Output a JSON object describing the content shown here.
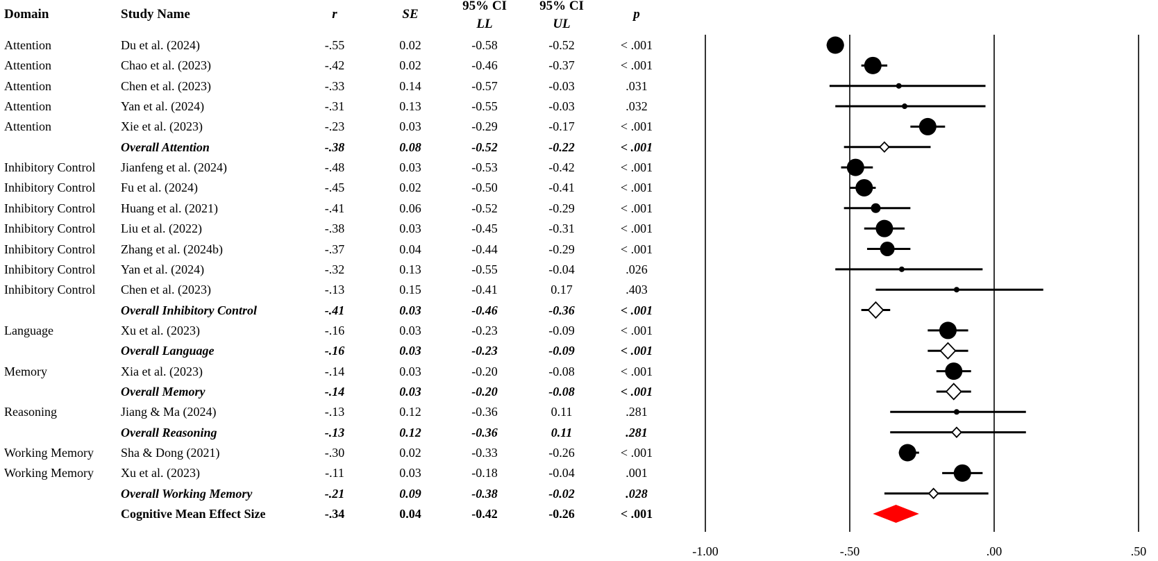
{
  "chart_data": {
    "type": "forest",
    "columns": {
      "domain": "Domain",
      "study": "Study Name",
      "r": "r",
      "se": "SE",
      "ll_top": "95% CI",
      "ll_bottom": "LL",
      "ul_top": "95% CI",
      "ul_bottom": "UL",
      "p": "p"
    },
    "rows": [
      {
        "kind": "study",
        "domain": "Attention",
        "study": "Du et al. (2024)",
        "r": "-.55",
        "se": "0.02",
        "ll": "-0.58",
        "ul": "-0.52",
        "p": "< .001",
        "est": -0.55,
        "lo": -0.58,
        "hi": -0.52,
        "weight": 0.02
      },
      {
        "kind": "study",
        "domain": "Attention",
        "study": "Chao et al. (2023)",
        "r": "-.42",
        "se": "0.02",
        "ll": "-0.46",
        "ul": "-0.37",
        "p": "< .001",
        "est": -0.42,
        "lo": -0.46,
        "hi": -0.37,
        "weight": 0.02
      },
      {
        "kind": "study",
        "domain": "Attention",
        "study": "Chen et al. (2023)",
        "r": "-.33",
        "se": "0.14",
        "ll": "-0.57",
        "ul": "-0.03",
        "p": ".031",
        "est": -0.33,
        "lo": -0.57,
        "hi": -0.03,
        "weight": 0.14
      },
      {
        "kind": "study",
        "domain": "Attention",
        "study": "Yan et al. (2024)",
        "r": "-.31",
        "se": "0.13",
        "ll": "-0.55",
        "ul": "-0.03",
        "p": ".032",
        "est": -0.31,
        "lo": -0.55,
        "hi": -0.03,
        "weight": 0.13
      },
      {
        "kind": "study",
        "domain": "Attention",
        "study": "Xie et al. (2023)",
        "r": "-.23",
        "se": "0.03",
        "ll": "-0.29",
        "ul": "-0.17",
        "p": "< .001",
        "est": -0.23,
        "lo": -0.29,
        "hi": -0.17,
        "weight": 0.03
      },
      {
        "kind": "overall",
        "domain": "",
        "study": "Overall Attention",
        "r": "-.38",
        "se": "0.08",
        "ll": "-0.52",
        "ul": "-0.22",
        "p": "< .001",
        "est": -0.38,
        "lo": -0.52,
        "hi": -0.22,
        "weight": 0.08
      },
      {
        "kind": "study",
        "domain": "Inhibitory Control",
        "study": "Jianfeng et al. (2024)",
        "r": "-.48",
        "se": "0.03",
        "ll": "-0.53",
        "ul": "-0.42",
        "p": "< .001",
        "est": -0.48,
        "lo": -0.53,
        "hi": -0.42,
        "weight": 0.03
      },
      {
        "kind": "study",
        "domain": "Inhibitory Control",
        "study": "Fu et al. (2024)",
        "r": "-.45",
        "se": "0.02",
        "ll": "-0.50",
        "ul": "-0.41",
        "p": "< .001",
        "est": -0.45,
        "lo": -0.5,
        "hi": -0.41,
        "weight": 0.02
      },
      {
        "kind": "study",
        "domain": "Inhibitory Control",
        "study": "Huang et al. (2021)",
        "r": "-.41",
        "se": "0.06",
        "ll": "-0.52",
        "ul": "-0.29",
        "p": "< .001",
        "est": -0.41,
        "lo": -0.52,
        "hi": -0.29,
        "weight": 0.06
      },
      {
        "kind": "study",
        "domain": "Inhibitory Control",
        "study": "Liu et al. (2022)",
        "r": "-.38",
        "se": "0.03",
        "ll": "-0.45",
        "ul": "-0.31",
        "p": "< .001",
        "est": -0.38,
        "lo": -0.45,
        "hi": -0.31,
        "weight": 0.03
      },
      {
        "kind": "study",
        "domain": "Inhibitory Control",
        "study": "Zhang et al. (2024b)",
        "r": "-.37",
        "se": "0.04",
        "ll": "-0.44",
        "ul": "-0.29",
        "p": "< .001",
        "est": -0.37,
        "lo": -0.44,
        "hi": -0.29,
        "weight": 0.04
      },
      {
        "kind": "study",
        "domain": "Inhibitory Control",
        "study": "Yan et al. (2024)",
        "r": "-.32",
        "se": "0.13",
        "ll": "-0.55",
        "ul": "-0.04",
        "p": ".026",
        "est": -0.32,
        "lo": -0.55,
        "hi": -0.04,
        "weight": 0.13
      },
      {
        "kind": "study",
        "domain": "Inhibitory Control",
        "study": "Chen et al. (2023)",
        "r": "-.13",
        "se": "0.15",
        "ll": "-0.41",
        "ul": "0.17",
        "p": ".403",
        "est": -0.13,
        "lo": -0.41,
        "hi": 0.17,
        "weight": 0.15
      },
      {
        "kind": "overall",
        "domain": "",
        "study": "Overall Inhibitory Control",
        "r": "-.41",
        "se": "0.03",
        "ll": "-0.46",
        "ul": "-0.36",
        "p": "< .001",
        "est": -0.41,
        "lo": -0.46,
        "hi": -0.36,
        "weight": 0.03
      },
      {
        "kind": "study",
        "domain": "Language",
        "study": "Xu et al. (2023)",
        "r": "-.16",
        "se": "0.03",
        "ll": "-0.23",
        "ul": "-0.09",
        "p": "< .001",
        "est": -0.16,
        "lo": -0.23,
        "hi": -0.09,
        "weight": 0.03
      },
      {
        "kind": "overall",
        "domain": "",
        "study": "Overall Language",
        "r": "-.16",
        "se": "0.03",
        "ll": "-0.23",
        "ul": "-0.09",
        "p": "< .001",
        "est": -0.16,
        "lo": -0.23,
        "hi": -0.09,
        "weight": 0.03
      },
      {
        "kind": "study",
        "domain": "Memory",
        "study": "Xia et al. (2023)",
        "r": "-.14",
        "se": "0.03",
        "ll": "-0.20",
        "ul": "-0.08",
        "p": "< .001",
        "est": -0.14,
        "lo": -0.2,
        "hi": -0.08,
        "weight": 0.03
      },
      {
        "kind": "overall",
        "domain": "",
        "study": "Overall Memory",
        "r": "-.14",
        "se": "0.03",
        "ll": "-0.20",
        "ul": "-0.08",
        "p": "< .001",
        "est": -0.14,
        "lo": -0.2,
        "hi": -0.08,
        "weight": 0.03
      },
      {
        "kind": "study",
        "domain": "Reasoning",
        "study": "Jiang & Ma (2024)",
        "r": "-.13",
        "se": "0.12",
        "ll": "-0.36",
        "ul": "0.11",
        "p": ".281",
        "est": -0.13,
        "lo": -0.36,
        "hi": 0.11,
        "weight": 0.12
      },
      {
        "kind": "overall",
        "domain": "",
        "study": "Overall Reasoning",
        "r": "-.13",
        "se": "0.12",
        "ll": "-0.36",
        "ul": "0.11",
        "p": ".281",
        "est": -0.13,
        "lo": -0.36,
        "hi": 0.11,
        "weight": 0.12
      },
      {
        "kind": "study",
        "domain": "Working Memory",
        "study": "Sha & Dong (2021)",
        "r": "-.30",
        "se": "0.02",
        "ll": "-0.33",
        "ul": "-0.26",
        "p": "< .001",
        "est": -0.3,
        "lo": -0.33,
        "hi": -0.26,
        "weight": 0.02
      },
      {
        "kind": "study",
        "domain": "Working Memory",
        "study": "Xu et al. (2023)",
        "r": "-.11",
        "se": "0.03",
        "ll": "-0.18",
        "ul": "-0.04",
        "p": ".001",
        "est": -0.11,
        "lo": -0.18,
        "hi": -0.04,
        "weight": 0.03
      },
      {
        "kind": "overall",
        "domain": "",
        "study": "Overall Working Memory",
        "r": "-.21",
        "se": "0.09",
        "ll": "-0.38",
        "ul": "-0.02",
        "p": ".028",
        "est": -0.21,
        "lo": -0.38,
        "hi": -0.02,
        "weight": 0.09
      },
      {
        "kind": "grand",
        "domain": "",
        "study": "Cognitive Mean Effect Size",
        "r": "-.34",
        "se": "0.04",
        "ll": "-0.42",
        "ul": "-0.26",
        "p": "< .001",
        "est": -0.34,
        "lo": -0.42,
        "hi": -0.26,
        "weight": 0.04
      }
    ],
    "xlim": [
      -1.0,
      0.5
    ],
    "xticks": [
      -1.0,
      -0.5,
      0.0,
      0.5
    ],
    "xtick_labels": [
      "-1.00",
      "-.50",
      ".00",
      ".50"
    ],
    "reference_lines": [
      -1.0,
      -0.5,
      0.0,
      0.5
    ],
    "grid": false,
    "colors": {
      "study_marker": "#000000",
      "overall_marker_fill": "#ffffff",
      "grand_marker": "#ff0000"
    }
  }
}
